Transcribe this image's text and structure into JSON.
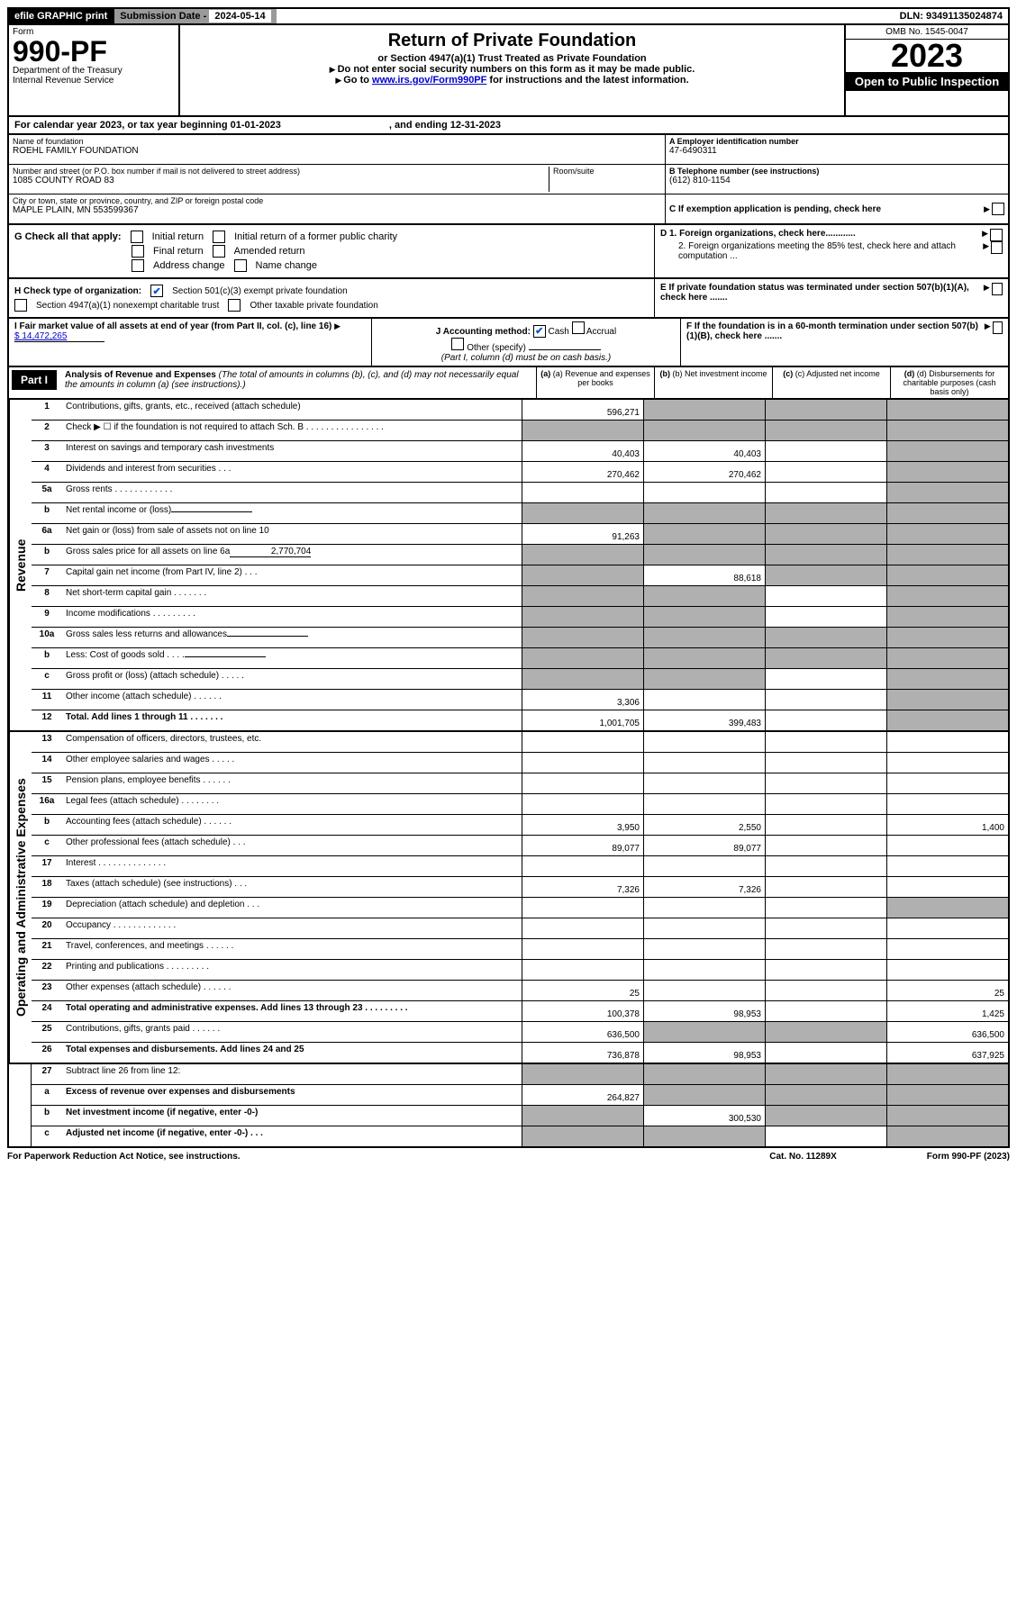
{
  "top": {
    "efile": "efile GRAPHIC print",
    "sub_label": "Submission Date - ",
    "sub_date": "2024-05-14",
    "dln": "DLN: 93491135024874"
  },
  "header": {
    "form_label": "Form",
    "form_no": "990-PF",
    "dept": "Department of the Treasury",
    "irs": "Internal Revenue Service",
    "title": "Return of Private Foundation",
    "subtitle": "or Section 4947(a)(1) Trust Treated as Private Foundation",
    "instr1": "Do not enter social security numbers on this form as it may be made public.",
    "instr2_pre": "Go to ",
    "instr2_link": "www.irs.gov/Form990PF",
    "instr2_post": " for instructions and the latest information.",
    "omb": "OMB No. 1545-0047",
    "year": "2023",
    "open": "Open to Public Inspection"
  },
  "cal": {
    "text": "For calendar year 2023, or tax year beginning 01-01-2023",
    "end": ", and ending 12-31-2023"
  },
  "info": {
    "name_label": "Name of foundation",
    "name": "ROEHL FAMILY FOUNDATION",
    "addr_label": "Number and street (or P.O. box number if mail is not delivered to street address)",
    "addr": "1085 COUNTY ROAD 83",
    "room_label": "Room/suite",
    "city_label": "City or town, state or province, country, and ZIP or foreign postal code",
    "city": "MAPLE PLAIN, MN  553599367",
    "ein_label": "A Employer identification number",
    "ein": "47-6490311",
    "tel_label": "B Telephone number (see instructions)",
    "tel": "(612) 810-1154",
    "c_label": "C If exemption application is pending, check here",
    "d1": "D 1. Foreign organizations, check here............",
    "d2": "2. Foreign organizations meeting the 85% test, check here and attach computation ...",
    "e_label": "E  If private foundation status was terminated under section 507(b)(1)(A), check here .......",
    "f_label": "F  If the foundation is in a 60-month termination under section 507(b)(1)(B), check here ......."
  },
  "g": {
    "label": "G Check all that apply:",
    "opts": [
      "Initial return",
      "Final return",
      "Address change",
      "Initial return of a former public charity",
      "Amended return",
      "Name change"
    ]
  },
  "h": {
    "label": "H Check type of organization:",
    "opt1": "Section 501(c)(3) exempt private foundation",
    "opt2": "Section 4947(a)(1) nonexempt charitable trust",
    "opt3": "Other taxable private foundation"
  },
  "i": {
    "label": "I Fair market value of all assets at end of year (from Part II, col. (c), line 16)",
    "value": "$  14,472,265"
  },
  "j": {
    "label": "J Accounting method:",
    "cash": "Cash",
    "accrual": "Accrual",
    "other": "Other (specify)",
    "note": "(Part I, column (d) must be on cash basis.)"
  },
  "part1": {
    "label": "Part I",
    "title": "Analysis of Revenue and Expenses",
    "note": "(The total of amounts in columns (b), (c), and (d) may not necessarily equal the amounts in column (a) (see instructions).)",
    "col_a": "(a) Revenue and expenses per books",
    "col_b": "(b) Net investment income",
    "col_c": "(c) Adjusted net income",
    "col_d": "(d) Disbursements for charitable purposes (cash basis only)"
  },
  "sides": {
    "revenue": "Revenue",
    "expenses": "Operating and Administrative Expenses"
  },
  "rows": [
    {
      "n": "1",
      "d": "Contributions, gifts, grants, etc., received (attach schedule)",
      "a": "596,271",
      "ag": false,
      "bg": true,
      "cg": true,
      "dg": true
    },
    {
      "n": "2",
      "d": "Check ▶ ☐ if the foundation is not required to attach Sch. B   .  .  .  .  .  .  .  .  .  .  .  .  .  .  .  .",
      "ag": true,
      "bg": true,
      "cg": true,
      "dg": true
    },
    {
      "n": "3",
      "d": "Interest on savings and temporary cash investments",
      "a": "40,403",
      "b": "40,403",
      "dg": true
    },
    {
      "n": "4",
      "d": "Dividends and interest from securities   .   .   .",
      "a": "270,462",
      "b": "270,462",
      "dg": true
    },
    {
      "n": "5a",
      "d": "Gross rents   .   .   .   .   .   .   .   .   .   .   .   .",
      "dg": true
    },
    {
      "n": "b",
      "d": "Net rental income or (loss)",
      "ag": true,
      "bg": true,
      "cg": true,
      "dg": true,
      "inline": true
    },
    {
      "n": "6a",
      "d": "Net gain or (loss) from sale of assets not on line 10",
      "a": "91,263",
      "bg": true,
      "cg": true,
      "dg": true
    },
    {
      "n": "b",
      "d": "Gross sales price for all assets on line 6a",
      "inline_val": "2,770,704",
      "ag": true,
      "bg": true,
      "cg": true,
      "dg": true
    },
    {
      "n": "7",
      "d": "Capital gain net income (from Part IV, line 2)   .   .   .",
      "ag": true,
      "b": "88,618",
      "cg": true,
      "dg": true
    },
    {
      "n": "8",
      "d": "Net short-term capital gain   .   .   .   .   .   .   .",
      "ag": true,
      "bg": true,
      "dg": true
    },
    {
      "n": "9",
      "d": "Income modifications   .   .   .   .   .   .   .   .   .",
      "ag": true,
      "bg": true,
      "dg": true
    },
    {
      "n": "10a",
      "d": "Gross sales less returns and allowances",
      "ag": true,
      "bg": true,
      "cg": true,
      "dg": true,
      "inline": true
    },
    {
      "n": "b",
      "d": "Less: Cost of goods sold   .   .   .   .",
      "ag": true,
      "bg": true,
      "cg": true,
      "dg": true,
      "inline": true
    },
    {
      "n": "c",
      "d": "Gross profit or (loss) (attach schedule)   .   .   .   .   .",
      "ag": true,
      "bg": true,
      "dg": true
    },
    {
      "n": "11",
      "d": "Other income (attach schedule)   .   .   .   .   .   .",
      "a": "3,306",
      "dg": true
    },
    {
      "n": "12",
      "d": "Total. Add lines 1 through 11   .   .   .   .   .   .   .",
      "bold": true,
      "a": "1,001,705",
      "b": "399,483",
      "dg": true
    }
  ],
  "exp_rows": [
    {
      "n": "13",
      "d": "Compensation of officers, directors, trustees, etc."
    },
    {
      "n": "14",
      "d": "Other employee salaries and wages   .   .   .   .   ."
    },
    {
      "n": "15",
      "d": "Pension plans, employee benefits   .   .   .   .   .   ."
    },
    {
      "n": "16a",
      "d": "Legal fees (attach schedule)   .   .   .   .   .   .   .   ."
    },
    {
      "n": "b",
      "d": "Accounting fees (attach schedule)   .   .   .   .   .   .",
      "a": "3,950",
      "b": "2,550",
      "d_": "1,400"
    },
    {
      "n": "c",
      "d": "Other professional fees (attach schedule)   .   .   .",
      "a": "89,077",
      "b": "89,077"
    },
    {
      "n": "17",
      "d": "Interest   .   .   .   .   .   .   .   .   .   .   .   .   .   ."
    },
    {
      "n": "18",
      "d": "Taxes (attach schedule) (see instructions)   .   .   .",
      "a": "7,326",
      "b": "7,326"
    },
    {
      "n": "19",
      "d": "Depreciation (attach schedule) and depletion   .   .   .",
      "dg": true
    },
    {
      "n": "20",
      "d": "Occupancy   .   .   .   .   .   .   .   .   .   .   .   .   ."
    },
    {
      "n": "21",
      "d": "Travel, conferences, and meetings   .   .   .   .   .   ."
    },
    {
      "n": "22",
      "d": "Printing and publications   .   .   .   .   .   .   .   .   ."
    },
    {
      "n": "23",
      "d": "Other expenses (attach schedule)   .   .   .   .   .   .",
      "a": "25",
      "d_": "25"
    },
    {
      "n": "24",
      "d": "Total operating and administrative expenses. Add lines 13 through 23   .   .   .   .   .   .   .   .   .",
      "bold": true,
      "a": "100,378",
      "b": "98,953",
      "d_": "1,425"
    },
    {
      "n": "25",
      "d": "Contributions, gifts, grants paid   .   .   .   .   .   .",
      "a": "636,500",
      "bg": true,
      "cg": true,
      "d_": "636,500"
    },
    {
      "n": "26",
      "d": "Total expenses and disbursements. Add lines 24 and 25",
      "bold": true,
      "a": "736,878",
      "b": "98,953",
      "d_": "637,925"
    }
  ],
  "bottom_rows": [
    {
      "n": "27",
      "d": "Subtract line 26 from line 12:",
      "ag": true,
      "bg": true,
      "cg": true,
      "dg": true
    },
    {
      "n": "a",
      "d": "Excess of revenue over expenses and disbursements",
      "bold": true,
      "a": "264,827",
      "bg": true,
      "cg": true,
      "dg": true
    },
    {
      "n": "b",
      "d": "Net investment income (if negative, enter -0-)",
      "bold": true,
      "ag": true,
      "b": "300,530",
      "cg": true,
      "dg": true
    },
    {
      "n": "c",
      "d": "Adjusted net income (if negative, enter -0-)   .   .   .",
      "bold": true,
      "ag": true,
      "bg": true,
      "dg": true
    }
  ],
  "footer": {
    "left": "For Paperwork Reduction Act Notice, see instructions.",
    "mid": "Cat. No. 11289X",
    "right": "Form 990-PF (2023)"
  },
  "colors": {
    "black": "#000000",
    "grey": "#b0b0b0",
    "link": "#0000cc",
    "check": "#0055cc"
  }
}
